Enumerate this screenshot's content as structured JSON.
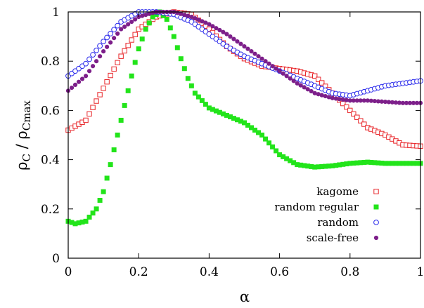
{
  "chart_data": {
    "type": "scatter",
    "xlabel": "α",
    "ylabel_parts": [
      "ρ",
      "C",
      " / ρ",
      "Cmax"
    ],
    "xlim": [
      0,
      1
    ],
    "ylim": [
      0,
      1
    ],
    "xticks": [
      0,
      0.2,
      0.4,
      0.6,
      0.8,
      1
    ],
    "xtick_labels": [
      "0",
      "0.2",
      "0.4",
      "0.6",
      "0.8",
      "1"
    ],
    "yticks": [
      0,
      0.2,
      0.4,
      0.6,
      0.8,
      1
    ],
    "ytick_labels": [
      "0",
      "0.2",
      "0.4",
      "0.6",
      "0.8",
      "1"
    ],
    "grid": false,
    "legend_position": "bottom-right",
    "series": [
      {
        "name": "kagome",
        "marker": "open-square",
        "color": "#e8262a",
        "points": [
          [
            0,
            0.52
          ],
          [
            0.05,
            0.56
          ],
          [
            0.1,
            0.69
          ],
          [
            0.15,
            0.82
          ],
          [
            0.2,
            0.93
          ],
          [
            0.25,
            0.98
          ],
          [
            0.3,
            1.0
          ],
          [
            0.35,
            0.99
          ],
          [
            0.4,
            0.93
          ],
          [
            0.45,
            0.86
          ],
          [
            0.5,
            0.81
          ],
          [
            0.55,
            0.78
          ],
          [
            0.6,
            0.77
          ],
          [
            0.65,
            0.76
          ],
          [
            0.7,
            0.74
          ],
          [
            0.75,
            0.67
          ],
          [
            0.8,
            0.6
          ],
          [
            0.85,
            0.53
          ],
          [
            0.9,
            0.5
          ],
          [
            0.95,
            0.46
          ],
          [
            1.0,
            0.455
          ]
        ]
      },
      {
        "name": "random regular",
        "marker": "filled-square",
        "color": "#22e41a",
        "points": [
          [
            0,
            0.15
          ],
          [
            0.02,
            0.14
          ],
          [
            0.05,
            0.15
          ],
          [
            0.08,
            0.2
          ],
          [
            0.1,
            0.27
          ],
          [
            0.12,
            0.38
          ],
          [
            0.14,
            0.5
          ],
          [
            0.16,
            0.62
          ],
          [
            0.18,
            0.74
          ],
          [
            0.2,
            0.85
          ],
          [
            0.22,
            0.93
          ],
          [
            0.24,
            0.98
          ],
          [
            0.26,
            1.0
          ],
          [
            0.28,
            0.97
          ],
          [
            0.3,
            0.9
          ],
          [
            0.32,
            0.81
          ],
          [
            0.34,
            0.73
          ],
          [
            0.36,
            0.67
          ],
          [
            0.4,
            0.61
          ],
          [
            0.45,
            0.58
          ],
          [
            0.5,
            0.55
          ],
          [
            0.55,
            0.5
          ],
          [
            0.6,
            0.42
          ],
          [
            0.65,
            0.38
          ],
          [
            0.7,
            0.37
          ],
          [
            0.75,
            0.375
          ],
          [
            0.8,
            0.385
          ],
          [
            0.85,
            0.39
          ],
          [
            0.9,
            0.385
          ],
          [
            0.95,
            0.385
          ],
          [
            1.0,
            0.385
          ]
        ]
      },
      {
        "name": "random",
        "marker": "open-circle",
        "color": "#2a2aeb",
        "points": [
          [
            0,
            0.74
          ],
          [
            0.05,
            0.79
          ],
          [
            0.1,
            0.88
          ],
          [
            0.15,
            0.96
          ],
          [
            0.2,
            1.0
          ],
          [
            0.25,
            1.0
          ],
          [
            0.3,
            0.99
          ],
          [
            0.35,
            0.96
          ],
          [
            0.4,
            0.91
          ],
          [
            0.45,
            0.86
          ],
          [
            0.5,
            0.82
          ],
          [
            0.55,
            0.79
          ],
          [
            0.6,
            0.76
          ],
          [
            0.65,
            0.73
          ],
          [
            0.7,
            0.7
          ],
          [
            0.75,
            0.67
          ],
          [
            0.8,
            0.66
          ],
          [
            0.85,
            0.68
          ],
          [
            0.9,
            0.7
          ],
          [
            0.95,
            0.71
          ],
          [
            1.0,
            0.72
          ]
        ]
      },
      {
        "name": "scale-free",
        "marker": "filled-circle",
        "color": "#7d1f8a",
        "points": [
          [
            0,
            0.68
          ],
          [
            0.05,
            0.74
          ],
          [
            0.1,
            0.84
          ],
          [
            0.15,
            0.93
          ],
          [
            0.2,
            0.98
          ],
          [
            0.25,
            1.0
          ],
          [
            0.3,
            1.0
          ],
          [
            0.35,
            0.98
          ],
          [
            0.4,
            0.95
          ],
          [
            0.45,
            0.91
          ],
          [
            0.5,
            0.86
          ],
          [
            0.55,
            0.81
          ],
          [
            0.6,
            0.76
          ],
          [
            0.65,
            0.71
          ],
          [
            0.7,
            0.67
          ],
          [
            0.75,
            0.65
          ],
          [
            0.8,
            0.64
          ],
          [
            0.85,
            0.64
          ],
          [
            0.9,
            0.635
          ],
          [
            0.95,
            0.63
          ],
          [
            1.0,
            0.63
          ]
        ]
      }
    ]
  }
}
